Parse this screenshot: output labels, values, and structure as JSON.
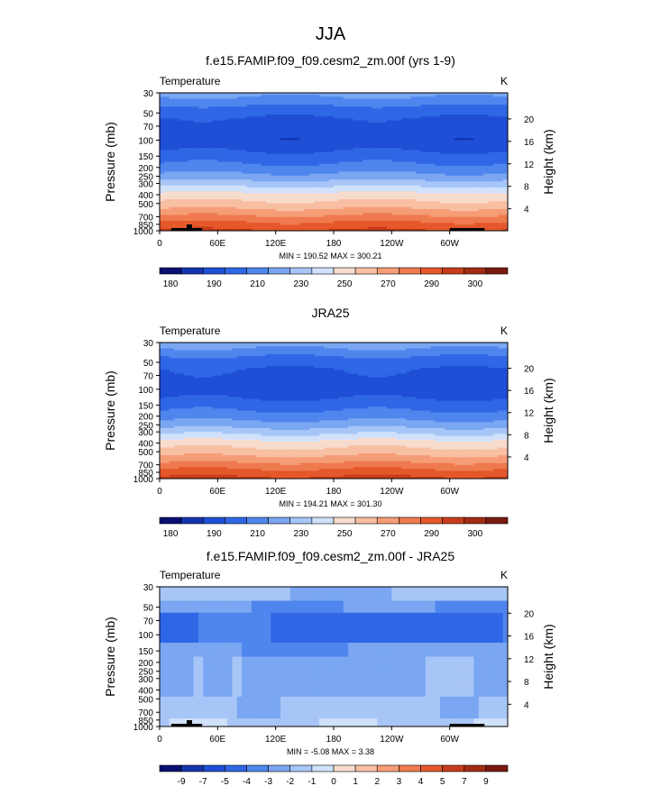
{
  "page_title": "JJA",
  "palettes": {
    "abs": [
      "#0a0f73",
      "#1533b0",
      "#1e4fd6",
      "#2f67e6",
      "#4f86ee",
      "#7aa6f2",
      "#a7c6f7",
      "#d0e1fb",
      "#f7dccd",
      "#f8bfa3",
      "#f59d77",
      "#ef7a4f",
      "#e5582b",
      "#c73d1c",
      "#a22b15",
      "#7a1a0f"
    ],
    "diff": [
      "#0a0f73",
      "#1533b0",
      "#1e4fd6",
      "#2f67e6",
      "#4f86ee",
      "#7aa6f2",
      "#a7c6f7",
      "#d0e1fb",
      "#f7dccd",
      "#f8bfa3",
      "#f59d77",
      "#ef7a4f",
      "#e5582b",
      "#c73d1c",
      "#a22b15",
      "#7a1a0f"
    ]
  },
  "chart_data": [
    {
      "type": "heatmap",
      "title": "f.e15.FAMIP.f09_f09.cesm2_zm.00f (yrs 1-9)",
      "left_label": "Temperature",
      "right_label": "K",
      "ylabel": "Pressure (mb)",
      "ylabel_right": "Height (km)",
      "xlim": [
        0,
        360
      ],
      "x_ticks": [
        "0",
        "60E",
        "120E",
        "180",
        "120W",
        "60W"
      ],
      "pressure_ticks": [
        "30",
        "50",
        "70",
        "100",
        "150",
        "200",
        "250",
        "300",
        "400",
        "500",
        "700",
        "850",
        "1000"
      ],
      "height_ticks": [
        "20",
        "16",
        "12",
        "8",
        "4"
      ],
      "min_max_text": "MIN = 190.52   MAX = 300.21",
      "min": 190.52,
      "max": 300.21,
      "colorbar_labels": [
        "180",
        "190",
        "210",
        "230",
        "250",
        "270",
        "290",
        "300"
      ],
      "colorbar_bins": 16,
      "field": "abs",
      "topography": true
    },
    {
      "type": "heatmap",
      "title": "JRA25",
      "left_label": "Temperature",
      "right_label": "K",
      "ylabel": "Pressure (mb)",
      "ylabel_right": "Height (km)",
      "xlim": [
        0,
        360
      ],
      "x_ticks": [
        "0",
        "60E",
        "120E",
        "180",
        "120W",
        "60W"
      ],
      "pressure_ticks": [
        "30",
        "50",
        "70",
        "100",
        "150",
        "200",
        "250",
        "300",
        "400",
        "500",
        "700",
        "850",
        "1000"
      ],
      "height_ticks": [
        "20",
        "16",
        "12",
        "8",
        "4"
      ],
      "min_max_text": "MIN = 194.21   MAX = 301.30",
      "min": 194.21,
      "max": 301.3,
      "colorbar_labels": [
        "180",
        "190",
        "210",
        "230",
        "250",
        "270",
        "290",
        "300"
      ],
      "colorbar_bins": 16,
      "field": "abs",
      "topography": false
    },
    {
      "type": "heatmap",
      "title": "f.e15.FAMIP.f09_f09.cesm2_zm.00f - JRA25",
      "left_label": "Temperature",
      "right_label": "K",
      "ylabel": "Pressure (mb)",
      "ylabel_right": "Height (km)",
      "xlim": [
        0,
        360
      ],
      "x_ticks": [
        "0",
        "60E",
        "120E",
        "180",
        "120W",
        "60W"
      ],
      "pressure_ticks": [
        "30",
        "50",
        "70",
        "100",
        "150",
        "200",
        "250",
        "300",
        "400",
        "500",
        "700",
        "850",
        "1000"
      ],
      "height_ticks": [
        "20",
        "16",
        "12",
        "8",
        "4"
      ],
      "min_max_text": "MIN = -5.08   MAX =  3.38",
      "min": -5.08,
      "max": 3.38,
      "colorbar_labels": [
        "-9",
        "-7",
        "-5",
        "-4",
        "-3",
        "-2",
        "-1",
        "0",
        "1",
        "2",
        "3",
        "4",
        "5",
        "7",
        "9"
      ],
      "colorbar_bins": 16,
      "field": "diff",
      "topography": true
    }
  ]
}
